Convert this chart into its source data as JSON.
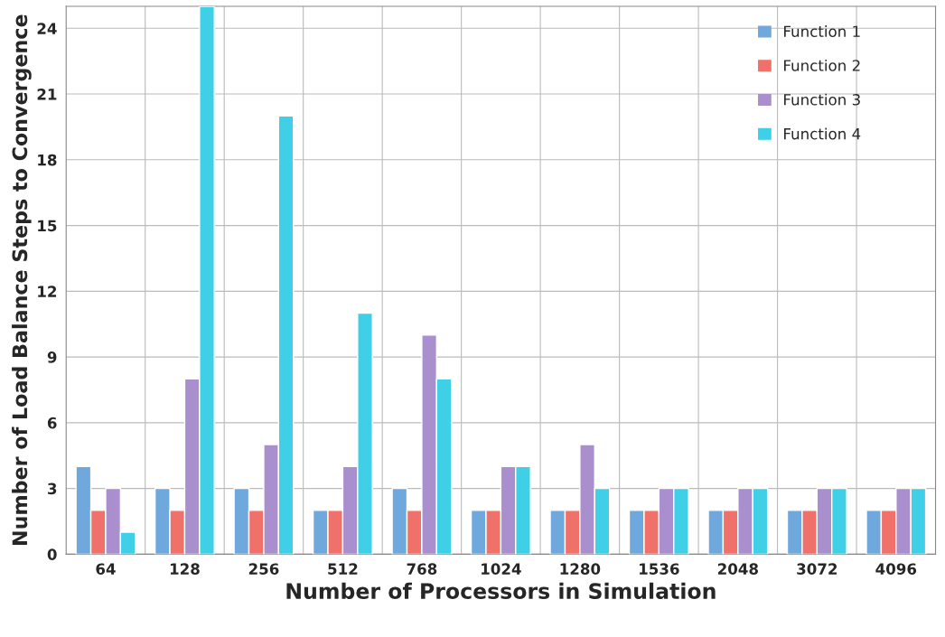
{
  "chart_data": {
    "type": "bar",
    "xlabel": "Number of Processors in Simulation",
    "ylabel": "Number of Load Balance Steps to Convergence",
    "categories": [
      "64",
      "128",
      "256",
      "512",
      "768",
      "1024",
      "1280",
      "1536",
      "2048",
      "3072",
      "4096"
    ],
    "series": [
      {
        "name": "Function 1",
        "color": "#6fa8dc",
        "values": [
          4,
          3,
          3,
          2,
          3,
          2,
          2,
          2,
          2,
          2,
          2
        ]
      },
      {
        "name": "Function 2",
        "color": "#f0706a",
        "values": [
          2,
          2,
          2,
          2,
          2,
          2,
          2,
          2,
          2,
          2,
          2
        ]
      },
      {
        "name": "Function 3",
        "color": "#a98fce",
        "values": [
          3,
          8,
          5,
          4,
          10,
          4,
          5,
          3,
          3,
          3,
          3
        ]
      },
      {
        "name": "Function 4",
        "color": "#3fd0e8",
        "values": [
          1,
          25,
          20,
          11,
          8,
          4,
          3,
          3,
          3,
          3,
          3
        ]
      }
    ],
    "ylim": [
      0,
      25
    ],
    "yticks": [
      0,
      3,
      6,
      9,
      12,
      15,
      18,
      21,
      24
    ],
    "grid": true,
    "legend": "top right"
  }
}
